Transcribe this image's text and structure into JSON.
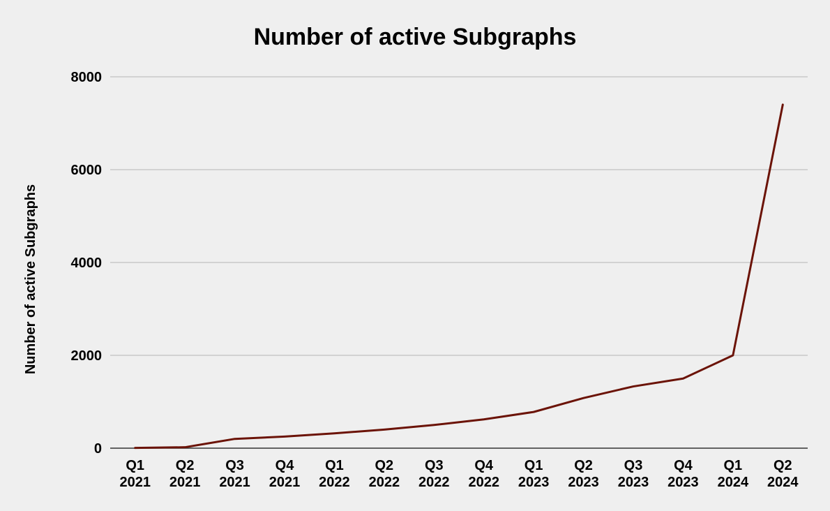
{
  "chart_data": {
    "type": "line",
    "title": "Number of active Subgraphs",
    "xlabel": "",
    "ylabel": "Number of active Subgraphs",
    "ylim": [
      0,
      8000
    ],
    "yticks": [
      "0",
      "2000",
      "4000",
      "6000",
      "8000"
    ],
    "ytick_values": [
      0,
      2000,
      4000,
      6000,
      8000
    ],
    "grid": true,
    "legend": "none",
    "categories": [
      [
        "Q1",
        "2021"
      ],
      [
        "Q2",
        "2021"
      ],
      [
        "Q3",
        "2021"
      ],
      [
        "Q4",
        "2021"
      ],
      [
        "Q1",
        "2022"
      ],
      [
        "Q2",
        "2022"
      ],
      [
        "Q3",
        "2022"
      ],
      [
        "Q4",
        "2022"
      ],
      [
        "Q1",
        "2023"
      ],
      [
        "Q2",
        "2023"
      ],
      [
        "Q3",
        "2023"
      ],
      [
        "Q4",
        "2023"
      ],
      [
        "Q1",
        "2024"
      ],
      [
        "Q2",
        "2024"
      ]
    ],
    "series": [
      {
        "color": "#6b1307",
        "values": [
          5,
          20,
          200,
          250,
          320,
          400,
          500,
          620,
          780,
          1080,
          1330,
          1500,
          2000,
          7400
        ]
      }
    ]
  }
}
